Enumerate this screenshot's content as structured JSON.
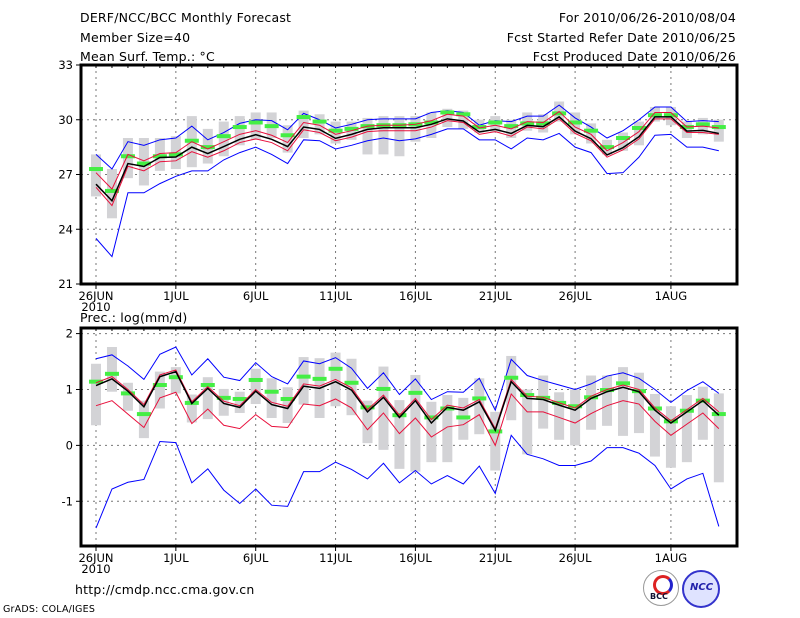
{
  "header": {
    "title": "DERF/NCC/BCC Monthly Forecast",
    "member_size": "Member Size=40",
    "variable": "Mean Surf. Temp.: °C",
    "period": "For 2010/06/26-2010/08/04",
    "start_date": "Fcst Started Refer Date 2010/06/25",
    "produced_date": "Fcst Produced Date 2010/06/26"
  },
  "footer": {
    "url": "http://cmdp.ncc.cma.gov.cn",
    "credit": "GrADS: COLA/IGES",
    "logo_left": "BCC",
    "logo_right": "NCC"
  },
  "colors": {
    "mean": "#000000",
    "spread": "#e8103c",
    "extreme": "#0000ff",
    "marker": "#44ee44",
    "range": "#d3d3d6"
  },
  "chart_data": [
    {
      "type": "line",
      "title": "Mean Surf. Temp.: °C",
      "ylim": [
        21,
        33
      ],
      "yticks": [
        "21",
        "24",
        "27",
        "30",
        "33"
      ],
      "ytick_values": [
        21,
        24,
        27,
        30,
        33
      ],
      "xtick_days": [
        0,
        5,
        10,
        15,
        20,
        25,
        30,
        36
      ],
      "xtick_labels": [
        "26JUN",
        "1JUL",
        "6JUL",
        "11JUL",
        "16JUL",
        "21JUL",
        "26JUL",
        "1AUG"
      ],
      "x_year": "2010",
      "grid": true,
      "mean": [
        26.47,
        25.56,
        27.6,
        27.44,
        27.93,
        27.96,
        28.5,
        28.15,
        28.53,
        28.93,
        29.18,
        28.93,
        28.53,
        29.6,
        29.47,
        28.98,
        29.2,
        29.47,
        29.56,
        29.56,
        29.56,
        29.75,
        30.05,
        29.93,
        29.33,
        29.47,
        29.25,
        29.69,
        29.62,
        30.16,
        29.38,
        28.96,
        28.07,
        28.47,
        29.07,
        30.16,
        30.16,
        29.38,
        29.42,
        29.25
      ],
      "upper": [
        27.1,
        26.2,
        28.1,
        27.75,
        28.15,
        28.2,
        28.8,
        28.4,
        28.8,
        29.2,
        29.4,
        29.15,
        28.75,
        29.85,
        29.7,
        29.2,
        29.4,
        29.65,
        29.7,
        29.7,
        29.75,
        29.95,
        30.3,
        30.2,
        29.55,
        29.7,
        29.5,
        29.9,
        29.85,
        30.45,
        29.6,
        29.2,
        28.3,
        28.75,
        29.35,
        30.4,
        30.4,
        29.6,
        29.65,
        29.55
      ],
      "lower": [
        26.3,
        25.3,
        27.45,
        27.2,
        27.7,
        27.75,
        28.25,
        27.95,
        28.3,
        28.75,
        28.95,
        28.75,
        28.3,
        29.45,
        29.3,
        28.85,
        29.05,
        29.35,
        29.4,
        29.4,
        29.4,
        29.6,
        29.95,
        29.85,
        29.2,
        29.35,
        29.1,
        29.6,
        29.5,
        30.05,
        29.25,
        28.85,
        27.95,
        28.35,
        28.95,
        30.05,
        30.05,
        29.3,
        29.3,
        29.2
      ],
      "max": [
        28.1,
        27.3,
        28.8,
        28.6,
        28.9,
        29.0,
        29.65,
        28.9,
        29.3,
        29.8,
        30.0,
        29.95,
        29.45,
        30.35,
        30.0,
        29.55,
        29.75,
        30.0,
        30.05,
        30.05,
        30.05,
        30.4,
        30.5,
        30.4,
        29.7,
        29.95,
        29.9,
        30.2,
        30.2,
        30.8,
        30.1,
        29.6,
        29.0,
        29.4,
        30.0,
        30.7,
        30.7,
        29.9,
        29.95,
        29.9
      ],
      "min": [
        23.5,
        22.5,
        26.0,
        26.0,
        26.5,
        26.9,
        27.2,
        27.2,
        27.8,
        28.2,
        28.5,
        28.1,
        27.6,
        28.9,
        28.85,
        28.4,
        28.6,
        28.85,
        29.0,
        28.85,
        28.95,
        29.2,
        29.5,
        29.5,
        28.9,
        28.9,
        28.4,
        29.0,
        28.9,
        29.25,
        28.5,
        28.2,
        27.05,
        27.1,
        27.95,
        29.15,
        29.2,
        28.5,
        28.5,
        28.3
      ],
      "marker": [
        27.3,
        26.1,
        28.0,
        27.6,
        28.0,
        28.1,
        28.85,
        28.5,
        29.1,
        29.6,
        29.85,
        29.65,
        29.15,
        30.15,
        29.9,
        29.4,
        29.5,
        29.65,
        29.7,
        29.7,
        29.75,
        29.85,
        30.4,
        30.3,
        29.6,
        29.85,
        29.65,
        29.8,
        29.8,
        30.35,
        29.85,
        29.4,
        28.5,
        29.0,
        29.55,
        30.25,
        30.25,
        29.6,
        29.75,
        29.6
      ],
      "range": [
        [
          25.8,
          28.1
        ],
        [
          24.6,
          27.3
        ],
        [
          26.8,
          29.0
        ],
        [
          26.4,
          29.0
        ],
        [
          27.2,
          29.0
        ],
        [
          27.3,
          29.1
        ],
        [
          27.4,
          30.2
        ],
        [
          27.6,
          29.5
        ],
        [
          28.0,
          29.9
        ],
        [
          28.6,
          30.2
        ],
        [
          28.9,
          30.4
        ],
        [
          29.0,
          30.4
        ],
        [
          28.2,
          29.7
        ],
        [
          29.0,
          30.5
        ],
        [
          29.2,
          30.3
        ],
        [
          28.7,
          29.9
        ],
        [
          28.9,
          29.9
        ],
        [
          28.1,
          30.1
        ],
        [
          28.1,
          30.2
        ],
        [
          28.0,
          30.2
        ],
        [
          28.8,
          30.2
        ],
        [
          29.0,
          30.4
        ],
        [
          29.6,
          30.6
        ],
        [
          29.5,
          30.5
        ],
        [
          29.3,
          30.0
        ],
        [
          29.3,
          30.2
        ],
        [
          29.0,
          30.0
        ],
        [
          29.4,
          30.4
        ],
        [
          29.3,
          30.3
        ],
        [
          29.9,
          31.0
        ],
        [
          29.2,
          30.4
        ],
        [
          28.7,
          29.8
        ],
        [
          28.1,
          28.9
        ],
        [
          28.3,
          29.3
        ],
        [
          28.6,
          29.9
        ],
        [
          29.9,
          30.7
        ],
        [
          29.7,
          30.7
        ],
        [
          29.0,
          29.9
        ],
        [
          29.2,
          30.1
        ],
        [
          28.8,
          30.0
        ]
      ]
    },
    {
      "type": "line",
      "title": "Prec.: log(mm/d)",
      "ylim": [
        -1.8,
        2.1
      ],
      "yticks": [
        "-1",
        "0",
        "1",
        "2"
      ],
      "ytick_values": [
        -1,
        0,
        1,
        2
      ],
      "xtick_days": [
        0,
        5,
        10,
        15,
        20,
        25,
        30,
        36
      ],
      "xtick_labels": [
        "26JUN",
        "1JUL",
        "6JUL",
        "11JUL",
        "16JUL",
        "21JUL",
        "26JUL",
        "1AUG"
      ],
      "x_year": "2010",
      "grid": true,
      "mean": [
        1.07,
        1.19,
        0.97,
        0.69,
        1.23,
        1.32,
        0.75,
        1.02,
        0.75,
        0.68,
        0.97,
        0.73,
        0.66,
        1.06,
        1.02,
        1.14,
        0.99,
        0.6,
        0.86,
        0.5,
        0.8,
        0.4,
        0.68,
        0.63,
        0.78,
        0.27,
        1.14,
        0.84,
        0.82,
        0.72,
        0.63,
        0.84,
        0.96,
        1.04,
        0.96,
        0.63,
        0.4,
        0.6,
        0.8,
        0.54
      ],
      "upper": [
        1.12,
        1.23,
        1.0,
        0.73,
        1.26,
        1.35,
        0.78,
        1.05,
        0.79,
        0.71,
        1.0,
        0.77,
        0.7,
        1.1,
        1.06,
        1.18,
        1.03,
        0.64,
        0.9,
        0.54,
        0.84,
        0.46,
        0.72,
        0.67,
        0.82,
        0.3,
        1.18,
        0.88,
        0.86,
        0.76,
        0.67,
        0.88,
        1.0,
        1.08,
        1.0,
        0.67,
        0.44,
        0.64,
        0.84,
        0.6
      ],
      "lower": [
        0.71,
        0.8,
        0.56,
        0.32,
        0.85,
        0.95,
        0.39,
        0.65,
        0.36,
        0.3,
        0.55,
        0.34,
        0.32,
        0.74,
        0.71,
        0.83,
        0.67,
        0.28,
        0.58,
        0.21,
        0.49,
        0.15,
        0.33,
        0.37,
        0.55,
        0.0,
        0.92,
        0.6,
        0.6,
        0.5,
        0.4,
        0.57,
        0.71,
        0.8,
        0.74,
        0.43,
        0.18,
        0.38,
        0.58,
        0.3
      ],
      "max": [
        1.55,
        1.62,
        1.42,
        1.18,
        1.63,
        1.76,
        1.26,
        1.55,
        1.22,
        1.16,
        1.48,
        1.23,
        1.1,
        1.51,
        1.46,
        1.57,
        1.38,
        1.02,
        1.3,
        0.91,
        1.19,
        0.82,
        0.96,
        0.95,
        1.2,
        0.63,
        1.54,
        1.25,
        1.16,
        1.08,
        1.0,
        1.1,
        1.24,
        1.3,
        1.2,
        1.0,
        0.77,
        0.98,
        1.14,
        0.93
      ],
      "min": [
        -1.48,
        -0.78,
        -0.66,
        -0.61,
        0.07,
        0.05,
        -0.67,
        -0.42,
        -0.8,
        -1.04,
        -0.78,
        -1.07,
        -1.09,
        -0.47,
        -0.47,
        -0.3,
        -0.43,
        -0.6,
        -0.32,
        -0.67,
        -0.45,
        -0.69,
        -0.54,
        -0.69,
        -0.37,
        -0.86,
        0.18,
        -0.16,
        -0.24,
        -0.36,
        -0.36,
        -0.28,
        -0.04,
        -0.04,
        -0.14,
        -0.36,
        -0.78,
        -0.6,
        -0.5,
        -1.45
      ],
      "marker": [
        1.14,
        1.28,
        0.93,
        0.56,
        1.08,
        1.22,
        0.76,
        1.08,
        0.85,
        0.83,
        1.17,
        0.96,
        0.83,
        1.23,
        1.19,
        1.37,
        1.12,
        0.68,
        1.01,
        0.54,
        0.94,
        0.5,
        0.66,
        0.5,
        0.84,
        0.25,
        1.21,
        0.9,
        0.85,
        0.76,
        0.7,
        0.86,
        0.99,
        1.11,
        0.97,
        0.66,
        0.43,
        0.62,
        0.8,
        0.56
      ],
      "range": [
        [
          0.36,
          1.46
        ],
        [
          0.96,
          1.76
        ],
        [
          0.62,
          1.12
        ],
        [
          0.13,
          0.8
        ],
        [
          0.66,
          1.32
        ],
        [
          0.93,
          1.4
        ],
        [
          0.41,
          0.91
        ],
        [
          0.47,
          1.22
        ],
        [
          0.53,
          1.01
        ],
        [
          0.58,
          0.96
        ],
        [
          0.74,
          1.37
        ],
        [
          0.49,
          1.2
        ],
        [
          0.4,
          1.04
        ],
        [
          0.73,
          1.58
        ],
        [
          0.49,
          1.56
        ],
        [
          0.7,
          1.66
        ],
        [
          0.54,
          1.55
        ],
        [
          0.04,
          0.8
        ],
        [
          -0.08,
          1.41
        ],
        [
          -0.42,
          0.81
        ],
        [
          -0.47,
          1.26
        ],
        [
          -0.3,
          0.78
        ],
        [
          -0.3,
          0.9
        ],
        [
          0.1,
          0.85
        ],
        [
          0.2,
          1.2
        ],
        [
          -0.45,
          0.6
        ],
        [
          0.45,
          1.6
        ],
        [
          -0.16,
          1.0
        ],
        [
          0.3,
          1.25
        ],
        [
          0.1,
          0.95
        ],
        [
          0.0,
          1.0
        ],
        [
          0.28,
          1.25
        ],
        [
          0.35,
          1.25
        ],
        [
          0.17,
          1.4
        ],
        [
          0.22,
          1.3
        ],
        [
          -0.2,
          0.92
        ],
        [
          -0.4,
          0.7
        ],
        [
          -0.3,
          0.9
        ],
        [
          0.1,
          1.05
        ],
        [
          -0.66,
          0.93
        ]
      ]
    }
  ]
}
